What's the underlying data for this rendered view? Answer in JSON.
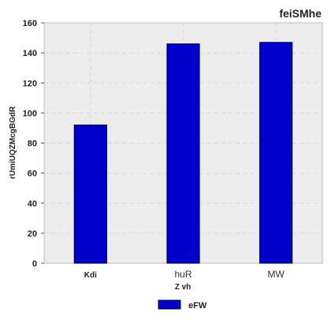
{
  "chart_data": {
    "type": "bar",
    "title": "feiSMhe",
    "xlabel": "Z vh",
    "ylabel": "rUmiUQZMcgBGdR",
    "categories": [
      "Kdi",
      "huR",
      "MW"
    ],
    "series": [
      {
        "name": "eFW",
        "values": [
          92,
          146,
          147
        ],
        "color": "#0000cc"
      }
    ],
    "ylim": [
      0,
      160
    ],
    "yticks": [
      0,
      20,
      40,
      60,
      80,
      100,
      120,
      140,
      160
    ],
    "grid": true,
    "legend_position": "bottom-center",
    "plot_background": "#ececec"
  }
}
